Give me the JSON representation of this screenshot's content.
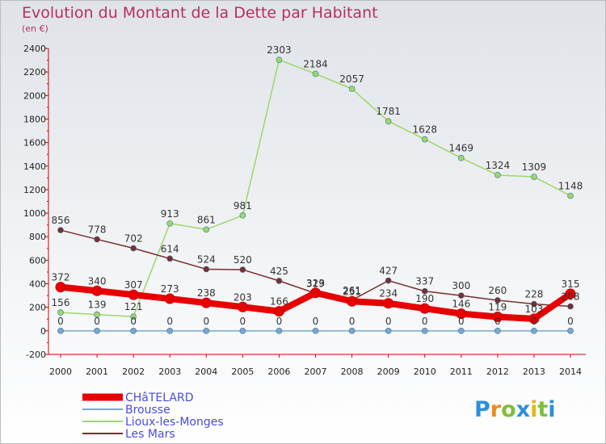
{
  "chart_data": {
    "type": "line",
    "title": "Evolution du Montant de la Dette par Habitant",
    "subtitle": "(en €)",
    "x": [
      "2000",
      "2001",
      "2002",
      "2003",
      "2004",
      "2005",
      "2006",
      "2007",
      "2008",
      "2009",
      "2010",
      "2011",
      "2012",
      "2013",
      "2014"
    ],
    "ylim": [
      -200,
      2400
    ],
    "yticks": [
      -200,
      0,
      200,
      400,
      600,
      800,
      1000,
      1200,
      1400,
      1600,
      1800,
      2000,
      2200,
      2400
    ],
    "grid": false,
    "legend_position": "bottom-left",
    "series": [
      {
        "name": "CHâTELARD",
        "color": "#e80000",
        "values": [
          372,
          340,
          307,
          273,
          238,
          203,
          166,
          323,
          251,
          234,
          190,
          146,
          119,
          103,
          315
        ]
      },
      {
        "name": "Brousse",
        "color": "#7aa7cf",
        "values": [
          0,
          0,
          0,
          0,
          0,
          0,
          0,
          0,
          0,
          0,
          0,
          0,
          0,
          0,
          0
        ]
      },
      {
        "name": "Lioux-les-Monges",
        "color": "#9bd86a",
        "values": [
          156,
          139,
          121,
          913,
          861,
          981,
          2303,
          2184,
          2057,
          1781,
          1628,
          1469,
          1324,
          1309,
          1148
        ]
      },
      {
        "name": "Les Mars",
        "color": "#7a2e2e",
        "values": [
          856,
          778,
          702,
          614,
          524,
          520,
          425,
          319,
          261,
          427,
          337,
          300,
          260,
          228,
          208
        ]
      }
    ]
  },
  "logo": {
    "text": "Proxiti"
  }
}
